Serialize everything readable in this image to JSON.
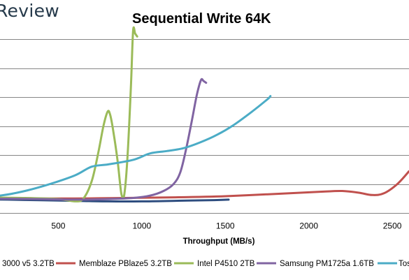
{
  "brand": {
    "text": "Review"
  },
  "chart_data": {
    "type": "line",
    "title": "Sequential Write 64K",
    "xlabel": "Throughput (MB/s)",
    "ylabel": "",
    "xlim": [
      0,
      2600
    ],
    "ylim": [
      0,
      3.5
    ],
    "x_ticks": [
      500,
      1000,
      1500,
      2000,
      2500
    ],
    "y_gridlines": [
      0.5,
      1.0,
      1.5,
      2.0,
      2.5,
      3.0
    ],
    "grid": true,
    "legend_placement": "bottom",
    "series": [
      {
        "name": "3000 v5 3.2TB",
        "color": "#2e4d7f",
        "points": [
          [
            0,
            0.24
          ],
          [
            200,
            0.23
          ],
          [
            400,
            0.22
          ],
          [
            600,
            0.21
          ],
          [
            800,
            0.2
          ],
          [
            1000,
            0.2
          ],
          [
            1200,
            0.21
          ],
          [
            1400,
            0.22
          ],
          [
            1520,
            0.23
          ]
        ]
      },
      {
        "name": "Memblaze PBlaze5 3.2TB",
        "color": "#c0504d",
        "points": [
          [
            0,
            0.25
          ],
          [
            300,
            0.25
          ],
          [
            600,
            0.25
          ],
          [
            900,
            0.26
          ],
          [
            1200,
            0.27
          ],
          [
            1500,
            0.29
          ],
          [
            1800,
            0.33
          ],
          [
            2100,
            0.37
          ],
          [
            2200,
            0.38
          ],
          [
            2300,
            0.35
          ],
          [
            2380,
            0.31
          ],
          [
            2450,
            0.34
          ],
          [
            2530,
            0.5
          ],
          [
            2600,
            0.72
          ]
        ]
      },
      {
        "name": "Intel P4510 2TB",
        "color": "#9bbb59",
        "points": [
          [
            0,
            0.27
          ],
          [
            300,
            0.26
          ],
          [
            500,
            0.24
          ],
          [
            600,
            0.2
          ],
          [
            650,
            0.25
          ],
          [
            700,
            0.55
          ],
          [
            740,
            1.05
          ],
          [
            770,
            1.5
          ],
          [
            795,
            1.75
          ],
          [
            810,
            1.7
          ],
          [
            830,
            1.4
          ],
          [
            855,
            0.9
          ],
          [
            870,
            0.5
          ],
          [
            880,
            0.3
          ],
          [
            895,
            0.32
          ],
          [
            915,
            1.0
          ],
          [
            935,
            2.2
          ],
          [
            948,
            3.15
          ],
          [
            960,
            3.1
          ],
          [
            972,
            3.05
          ]
        ]
      },
      {
        "name": "Samsung PM1725a 1.6TB",
        "color": "#8064a2",
        "points": [
          [
            0,
            0.25
          ],
          [
            400,
            0.24
          ],
          [
            600,
            0.23
          ],
          [
            800,
            0.24
          ],
          [
            950,
            0.26
          ],
          [
            1050,
            0.3
          ],
          [
            1130,
            0.38
          ],
          [
            1190,
            0.5
          ],
          [
            1230,
            0.7
          ],
          [
            1265,
            1.1
          ],
          [
            1300,
            1.6
          ],
          [
            1330,
            2.05
          ],
          [
            1355,
            2.3
          ],
          [
            1370,
            2.28
          ],
          [
            1385,
            2.25
          ]
        ]
      },
      {
        "name": "Tos",
        "color": "#4bacc6",
        "points": [
          [
            0,
            0.28
          ],
          [
            150,
            0.3
          ],
          [
            300,
            0.38
          ],
          [
            450,
            0.5
          ],
          [
            600,
            0.65
          ],
          [
            700,
            0.8
          ],
          [
            800,
            0.84
          ],
          [
            950,
            0.92
          ],
          [
            1050,
            1.03
          ],
          [
            1150,
            1.07
          ],
          [
            1250,
            1.12
          ],
          [
            1350,
            1.22
          ],
          [
            1450,
            1.35
          ],
          [
            1550,
            1.52
          ],
          [
            1650,
            1.73
          ],
          [
            1750,
            1.96
          ],
          [
            1770,
            2.02
          ]
        ]
      }
    ]
  }
}
